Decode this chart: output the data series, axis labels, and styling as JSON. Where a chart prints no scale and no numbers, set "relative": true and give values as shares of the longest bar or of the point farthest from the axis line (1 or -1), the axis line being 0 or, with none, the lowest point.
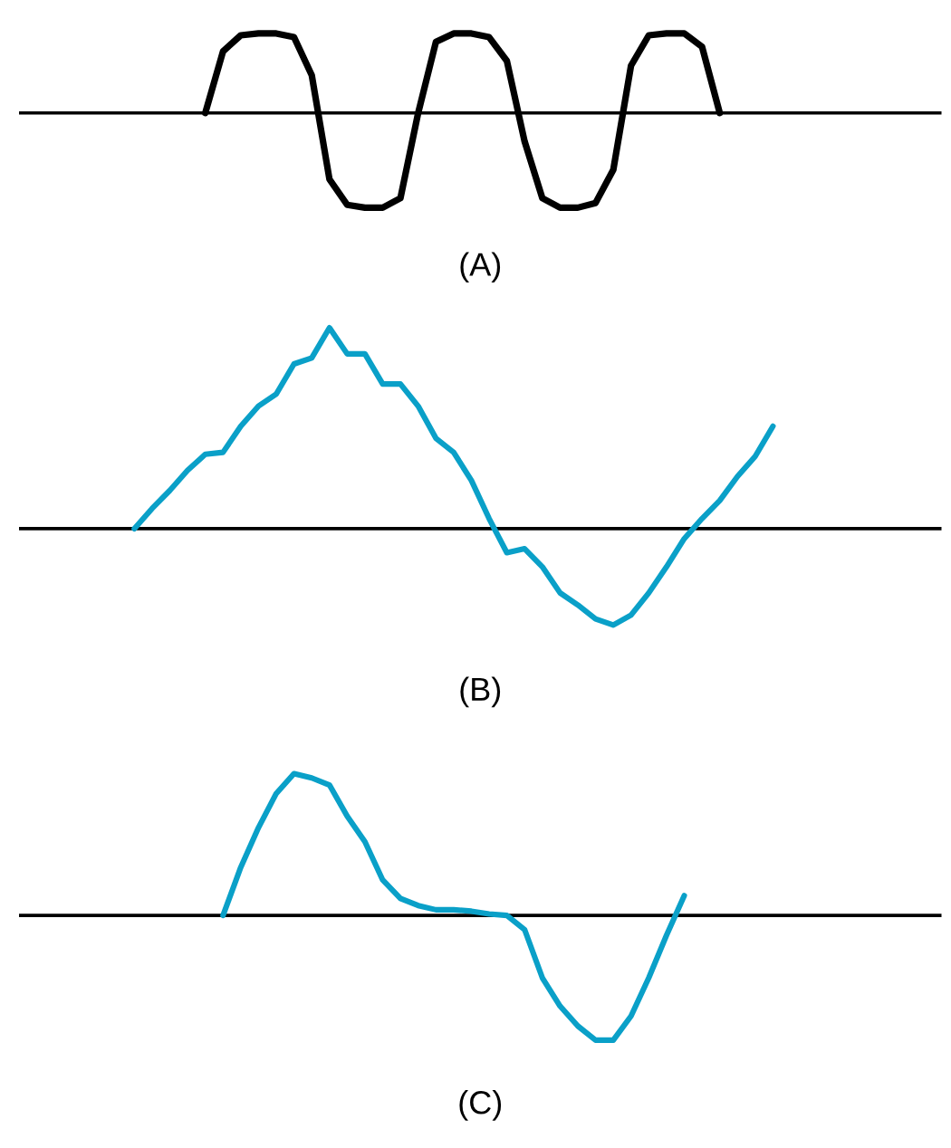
{
  "chart_data": [
    {
      "type": "line",
      "relative": true,
      "xlabel": "(A)",
      "categories": [
        null,
        null,
        null,
        null,
        null,
        null,
        null,
        null,
        null,
        null,
        null,
        null,
        null,
        null,
        null,
        null,
        null,
        null,
        null,
        null,
        null,
        null,
        null,
        null,
        null,
        null,
        null,
        null,
        null,
        null,
        null,
        null,
        null,
        null,
        null,
        null,
        null,
        null,
        null,
        null,
        null,
        null,
        null,
        null,
        null,
        null,
        null,
        null,
        null,
        null,
        null,
        null
      ],
      "series": [
        {
          "color": "#000000",
          "values": [
            null,
            null,
            null,
            null,
            null,
            null,
            null,
            null,
            null,
            null,
            0,
            0.65,
            0.82,
            0.84,
            0.84,
            0.8,
            0.4,
            -0.7,
            -0.97,
            -1,
            -1,
            -0.9,
            0,
            0.75,
            0.84,
            0.84,
            0.8,
            0.55,
            -0.3,
            -0.9,
            -1,
            -1,
            -0.95,
            -0.6,
            0.5,
            0.82,
            0.84,
            0.84,
            0.7,
            0,
            null,
            null,
            null,
            null,
            null,
            null,
            null,
            null,
            null,
            null,
            null,
            null
          ]
        }
      ]
    },
    {
      "type": "line",
      "relative": true,
      "xlabel": "(B)",
      "categories": [
        null,
        null,
        null,
        null,
        null,
        null,
        null,
        null,
        null,
        null,
        null,
        null,
        null,
        null,
        null,
        null,
        null,
        null,
        null,
        null,
        null,
        null,
        null,
        null,
        null,
        null,
        null,
        null,
        null,
        null,
        null,
        null,
        null,
        null,
        null,
        null,
        null,
        null,
        null,
        null,
        null,
        null,
        null,
        null,
        null,
        null,
        null,
        null,
        null,
        null,
        null,
        null
      ],
      "series": [
        {
          "color": "#0aa0c8",
          "values": [
            null,
            null,
            null,
            null,
            null,
            null,
            0,
            0.1,
            0.19,
            0.29,
            0.37,
            0.38,
            0.51,
            0.61,
            0.67,
            0.82,
            0.85,
            1,
            0.87,
            0.87,
            0.72,
            0.72,
            0.61,
            0.45,
            0.38,
            0.24,
            0.05,
            -0.12,
            -0.1,
            -0.19,
            -0.32,
            -0.38,
            -0.45,
            -0.48,
            -0.43,
            -0.32,
            -0.19,
            -0.05,
            0.05,
            0.14,
            0.26,
            0.36,
            0.51,
            null,
            null,
            null,
            null,
            null,
            null,
            null,
            null,
            null
          ]
        }
      ]
    },
    {
      "type": "line",
      "relative": true,
      "xlabel": "(C)",
      "categories": [
        null,
        null,
        null,
        null,
        null,
        null,
        null,
        null,
        null,
        null,
        null,
        null,
        null,
        null,
        null,
        null,
        null,
        null,
        null,
        null,
        null,
        null,
        null,
        null,
        null,
        null,
        null,
        null,
        null,
        null,
        null,
        null,
        null,
        null,
        null,
        null,
        null,
        null,
        null,
        null,
        null,
        null,
        null,
        null,
        null,
        null,
        null,
        null,
        null,
        null,
        null,
        null
      ],
      "series": [
        {
          "color": "#0aa0c8",
          "values": [
            null,
            null,
            null,
            null,
            null,
            null,
            null,
            null,
            null,
            null,
            null,
            0,
            0.34,
            0.62,
            0.86,
            1,
            0.97,
            0.92,
            0.7,
            0.52,
            0.25,
            0.12,
            0.07,
            0.04,
            0.04,
            0.03,
            0.01,
            0,
            -0.1,
            -0.44,
            -0.64,
            -0.78,
            -0.88,
            -0.88,
            -0.71,
            -0.44,
            -0.14,
            0.14,
            null,
            null,
            null,
            null,
            null,
            null,
            null,
            null,
            null,
            null,
            null,
            null,
            null,
            null
          ]
        }
      ]
    }
  ]
}
